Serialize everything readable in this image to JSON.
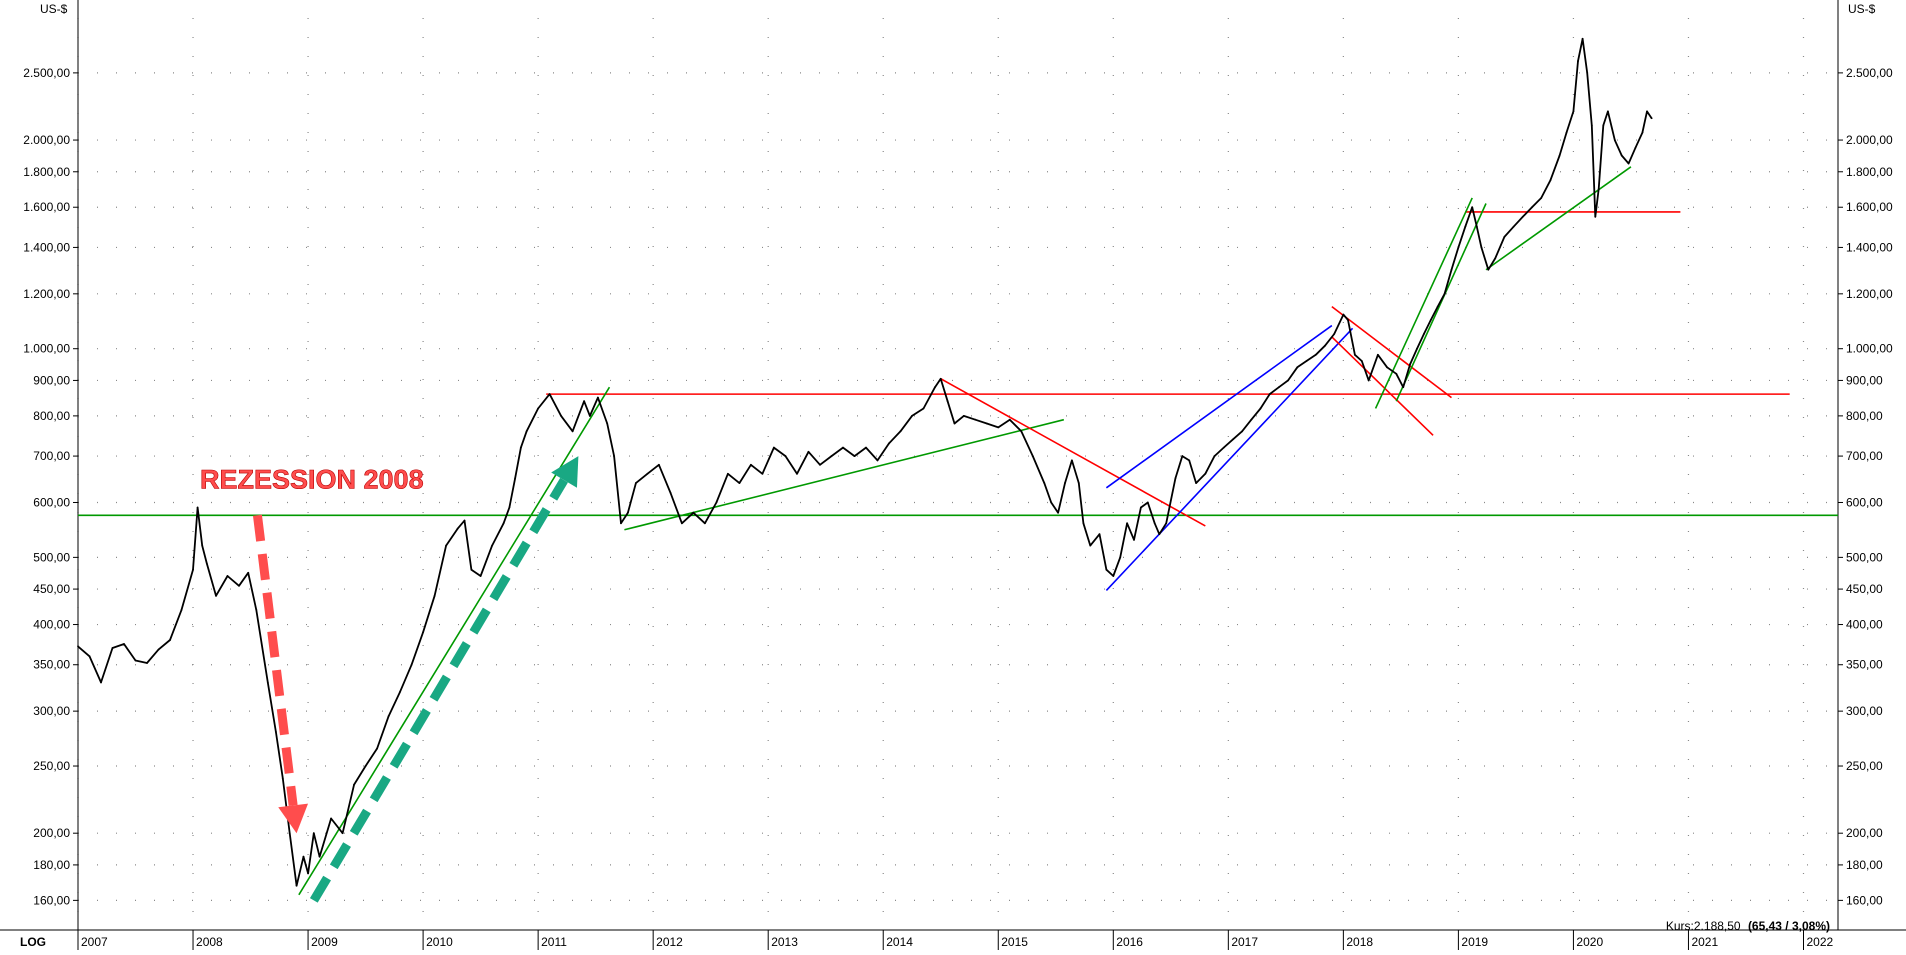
{
  "chart_data": {
    "type": "line",
    "title": "",
    "y_unit": "US-$",
    "y_scale": "log",
    "scale_label": "LOG",
    "ylim": [
      145,
      3000
    ],
    "y_ticks": [
      160,
      180,
      200,
      250,
      300,
      350,
      400,
      450,
      500,
      600,
      700,
      800,
      900,
      1000,
      1200,
      1400,
      1600,
      1800,
      2000,
      2500
    ],
    "y_tick_labels": [
      "160,00",
      "180,00",
      "200,00",
      "250,00",
      "300,00",
      "350,00",
      "400,00",
      "450,00",
      "500,00",
      "600,00",
      "700,00",
      "800,00",
      "900,00",
      "1.000,00",
      "1.200,00",
      "1.400,00",
      "1.600,00",
      "1.800,00",
      "2.000,00",
      "2.500,00"
    ],
    "xlim": [
      2007.0,
      2022.3
    ],
    "x_ticks": [
      2007,
      2008,
      2009,
      2010,
      2011,
      2012,
      2013,
      2014,
      2015,
      2016,
      2017,
      2018,
      2019,
      2020,
      2021,
      2022
    ],
    "x_tick_labels": [
      "2007",
      "2008",
      "2009",
      "2010",
      "2011",
      "2012",
      "2013",
      "2014",
      "2015",
      "2016",
      "2017",
      "2018",
      "2019",
      "2020",
      "2021",
      "2022"
    ],
    "grid": true,
    "series": [
      {
        "color": "#000000",
        "points": [
          [
            2007.0,
            372
          ],
          [
            2007.1,
            360
          ],
          [
            2007.2,
            330
          ],
          [
            2007.3,
            370
          ],
          [
            2007.4,
            375
          ],
          [
            2007.5,
            355
          ],
          [
            2007.6,
            352
          ],
          [
            2007.7,
            368
          ],
          [
            2007.8,
            380
          ],
          [
            2007.9,
            420
          ],
          [
            2008.0,
            480
          ],
          [
            2008.04,
            590
          ],
          [
            2008.08,
            520
          ],
          [
            2008.12,
            490
          ],
          [
            2008.2,
            440
          ],
          [
            2008.3,
            470
          ],
          [
            2008.4,
            455
          ],
          [
            2008.48,
            475
          ],
          [
            2008.55,
            420
          ],
          [
            2008.65,
            330
          ],
          [
            2008.72,
            280
          ],
          [
            2008.78,
            240
          ],
          [
            2008.84,
            200
          ],
          [
            2008.9,
            168
          ],
          [
            2008.96,
            185
          ],
          [
            2009.0,
            175
          ],
          [
            2009.05,
            200
          ],
          [
            2009.1,
            185
          ],
          [
            2009.2,
            210
          ],
          [
            2009.3,
            200
          ],
          [
            2009.4,
            235
          ],
          [
            2009.5,
            250
          ],
          [
            2009.6,
            265
          ],
          [
            2009.7,
            295
          ],
          [
            2009.8,
            320
          ],
          [
            2009.9,
            350
          ],
          [
            2010.0,
            390
          ],
          [
            2010.1,
            440
          ],
          [
            2010.2,
            520
          ],
          [
            2010.3,
            550
          ],
          [
            2010.36,
            565
          ],
          [
            2010.42,
            480
          ],
          [
            2010.5,
            470
          ],
          [
            2010.6,
            520
          ],
          [
            2010.7,
            560
          ],
          [
            2010.75,
            590
          ],
          [
            2010.8,
            650
          ],
          [
            2010.85,
            720
          ],
          [
            2010.9,
            760
          ],
          [
            2011.0,
            820
          ],
          [
            2011.1,
            860
          ],
          [
            2011.2,
            800
          ],
          [
            2011.3,
            760
          ],
          [
            2011.4,
            840
          ],
          [
            2011.45,
            800
          ],
          [
            2011.52,
            850
          ],
          [
            2011.6,
            780
          ],
          [
            2011.66,
            700
          ],
          [
            2011.72,
            560
          ],
          [
            2011.78,
            580
          ],
          [
            2011.85,
            640
          ],
          [
            2011.95,
            660
          ],
          [
            2012.05,
            680
          ],
          [
            2012.15,
            620
          ],
          [
            2012.25,
            560
          ],
          [
            2012.35,
            580
          ],
          [
            2012.45,
            560
          ],
          [
            2012.55,
            600
          ],
          [
            2012.65,
            660
          ],
          [
            2012.75,
            640
          ],
          [
            2012.85,
            680
          ],
          [
            2012.95,
            660
          ],
          [
            2013.05,
            720
          ],
          [
            2013.15,
            700
          ],
          [
            2013.25,
            660
          ],
          [
            2013.35,
            710
          ],
          [
            2013.45,
            680
          ],
          [
            2013.55,
            700
          ],
          [
            2013.65,
            720
          ],
          [
            2013.75,
            700
          ],
          [
            2013.85,
            720
          ],
          [
            2013.95,
            690
          ],
          [
            2014.05,
            730
          ],
          [
            2014.15,
            760
          ],
          [
            2014.25,
            800
          ],
          [
            2014.35,
            820
          ],
          [
            2014.45,
            880
          ],
          [
            2014.5,
            905
          ],
          [
            2014.56,
            840
          ],
          [
            2014.62,
            780
          ],
          [
            2014.7,
            800
          ],
          [
            2014.8,
            790
          ],
          [
            2014.9,
            780
          ],
          [
            2015.0,
            770
          ],
          [
            2015.1,
            790
          ],
          [
            2015.2,
            760
          ],
          [
            2015.3,
            700
          ],
          [
            2015.4,
            640
          ],
          [
            2015.46,
            600
          ],
          [
            2015.52,
            580
          ],
          [
            2015.58,
            640
          ],
          [
            2015.64,
            690
          ],
          [
            2015.7,
            640
          ],
          [
            2015.74,
            560
          ],
          [
            2015.8,
            520
          ],
          [
            2015.88,
            540
          ],
          [
            2015.94,
            480
          ],
          [
            2016.0,
            470
          ],
          [
            2016.06,
            500
          ],
          [
            2016.12,
            560
          ],
          [
            2016.18,
            530
          ],
          [
            2016.24,
            590
          ],
          [
            2016.3,
            600
          ],
          [
            2016.36,
            560
          ],
          [
            2016.4,
            540
          ],
          [
            2016.46,
            560
          ],
          [
            2016.54,
            650
          ],
          [
            2016.6,
            700
          ],
          [
            2016.66,
            690
          ],
          [
            2016.72,
            640
          ],
          [
            2016.8,
            660
          ],
          [
            2016.88,
            700
          ],
          [
            2016.96,
            720
          ],
          [
            2017.04,
            740
          ],
          [
            2017.12,
            760
          ],
          [
            2017.2,
            790
          ],
          [
            2017.28,
            820
          ],
          [
            2017.36,
            860
          ],
          [
            2017.44,
            880
          ],
          [
            2017.52,
            900
          ],
          [
            2017.6,
            940
          ],
          [
            2017.68,
            960
          ],
          [
            2017.76,
            980
          ],
          [
            2017.84,
            1010
          ],
          [
            2017.92,
            1050
          ],
          [
            2018.0,
            1120
          ],
          [
            2018.04,
            1100
          ],
          [
            2018.1,
            980
          ],
          [
            2018.16,
            960
          ],
          [
            2018.22,
            900
          ],
          [
            2018.3,
            980
          ],
          [
            2018.38,
            940
          ],
          [
            2018.46,
            920
          ],
          [
            2018.52,
            880
          ],
          [
            2018.58,
            950
          ],
          [
            2018.64,
            1000
          ],
          [
            2018.7,
            1050
          ],
          [
            2018.76,
            1100
          ],
          [
            2018.82,
            1150
          ],
          [
            2018.88,
            1200
          ],
          [
            2018.94,
            1300
          ],
          [
            2019.0,
            1400
          ],
          [
            2019.06,
            1500
          ],
          [
            2019.12,
            1600
          ],
          [
            2019.16,
            1500
          ],
          [
            2019.2,
            1400
          ],
          [
            2019.26,
            1300
          ],
          [
            2019.32,
            1350
          ],
          [
            2019.4,
            1450
          ],
          [
            2019.48,
            1500
          ],
          [
            2019.56,
            1550
          ],
          [
            2019.64,
            1600
          ],
          [
            2019.72,
            1650
          ],
          [
            2019.8,
            1750
          ],
          [
            2019.88,
            1900
          ],
          [
            2019.94,
            2050
          ],
          [
            2020.0,
            2200
          ],
          [
            2020.04,
            2600
          ],
          [
            2020.08,
            2800
          ],
          [
            2020.12,
            2500
          ],
          [
            2020.16,
            2100
          ],
          [
            2020.19,
            1550
          ],
          [
            2020.22,
            1700
          ],
          [
            2020.26,
            2100
          ],
          [
            2020.3,
            2200
          ],
          [
            2020.36,
            2000
          ],
          [
            2020.42,
            1900
          ],
          [
            2020.48,
            1850
          ],
          [
            2020.54,
            1950
          ],
          [
            2020.6,
            2050
          ],
          [
            2020.64,
            2200
          ],
          [
            2020.68,
            2150
          ]
        ]
      }
    ],
    "trendlines": [
      {
        "color": "#009900",
        "from": [
          2007.0,
          575
        ],
        "to": [
          2022.3,
          575
        ]
      },
      {
        "color": "#ff0000",
        "from": [
          2011.07,
          860
        ],
        "to": [
          2021.88,
          860
        ]
      },
      {
        "color": "#ff0000",
        "from": [
          2019.06,
          1575
        ],
        "to": [
          2020.93,
          1575
        ]
      },
      {
        "color": "#009900",
        "from": [
          2008.92,
          163
        ],
        "to": [
          2011.62,
          880
        ]
      },
      {
        "color": "#009900",
        "from": [
          2011.75,
          548
        ],
        "to": [
          2015.57,
          790
        ]
      },
      {
        "color": "#ff0000",
        "from": [
          2014.5,
          905
        ],
        "to": [
          2016.8,
          555
        ]
      },
      {
        "color": "#0000ff",
        "from": [
          2015.94,
          630
        ],
        "to": [
          2017.9,
          1080
        ]
      },
      {
        "color": "#0000ff",
        "from": [
          2015.94,
          448
        ],
        "to": [
          2018.08,
          1070
        ]
      },
      {
        "color": "#ff0000",
        "from": [
          2017.9,
          1150
        ],
        "to": [
          2018.94,
          850
        ]
      },
      {
        "color": "#ff0000",
        "from": [
          2017.9,
          1040
        ],
        "to": [
          2018.78,
          750
        ]
      },
      {
        "color": "#009900",
        "from": [
          2018.28,
          820
        ],
        "to": [
          2019.12,
          1650
        ]
      },
      {
        "color": "#009900",
        "from": [
          2018.46,
          840
        ],
        "to": [
          2019.24,
          1620
        ]
      },
      {
        "color": "#009900",
        "from": [
          2019.24,
          1300
        ],
        "to": [
          2020.5,
          1830
        ]
      }
    ],
    "annotations": [
      {
        "text": "REZESSION 2008",
        "x": 2009.0,
        "y": 650
      }
    ],
    "arrows": [
      {
        "color": "#ff4d4d",
        "from": [
          2008.56,
          575
        ],
        "to": [
          2008.9,
          200
        ]
      },
      {
        "color": "#19a883",
        "from": [
          2009.05,
          160
        ],
        "to": [
          2011.35,
          700
        ]
      }
    ],
    "quote": {
      "prefix": "Kurs:2.188,50",
      "change": "(65,43 / 3,08%)"
    }
  }
}
